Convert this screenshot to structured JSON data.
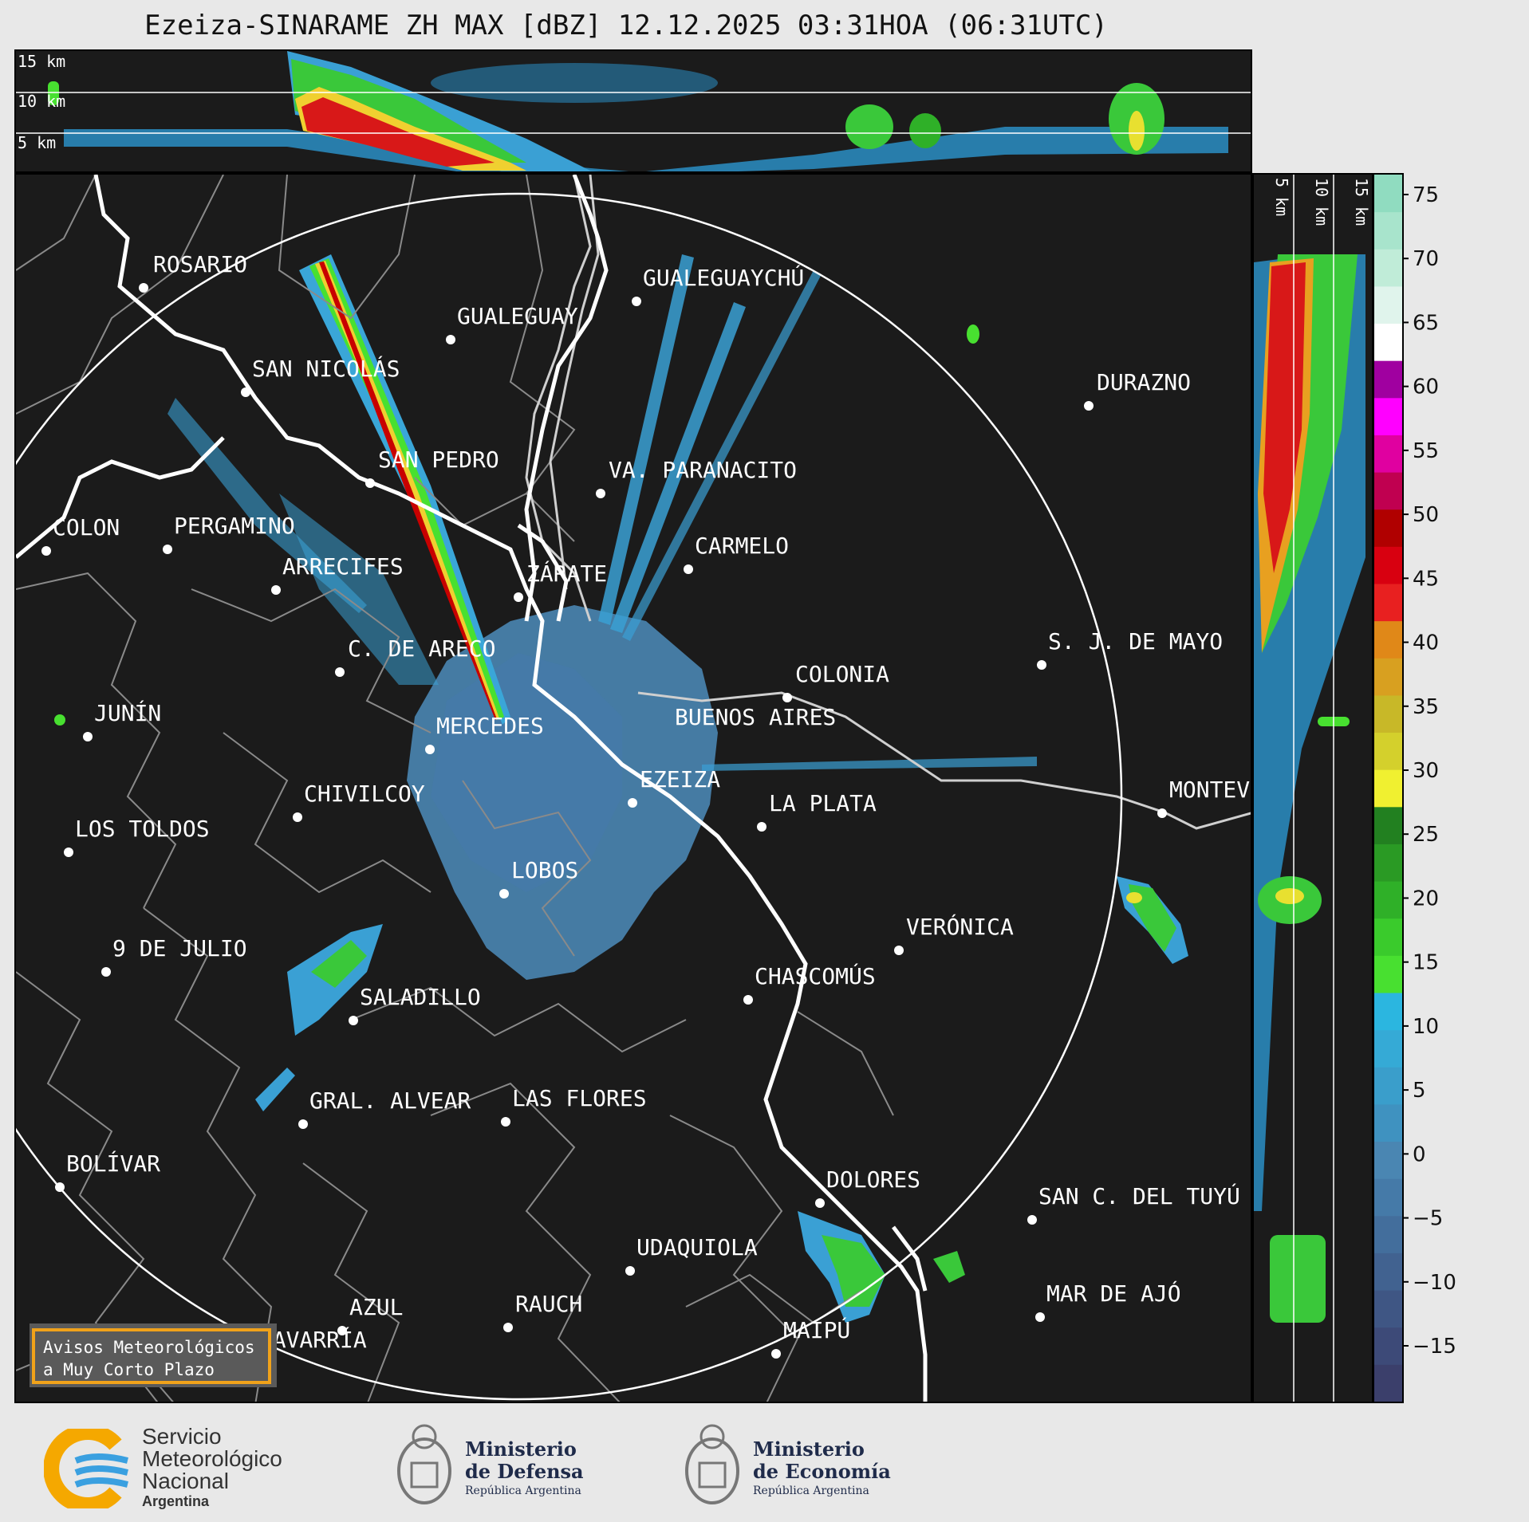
{
  "title": "Ezeiza-SINARAME ZH MAX [dBZ] 12.12.2025 03:31HOA (06:31UTC)",
  "top_axis": {
    "labels": [
      "15 km",
      "10 km",
      "5 km"
    ]
  },
  "side_axis": {
    "labels": [
      "5 km",
      "10 km",
      "15 km"
    ]
  },
  "colorbar": {
    "ticks": [
      "75",
      "70",
      "65",
      "60",
      "55",
      "50",
      "45",
      "40",
      "35",
      "30",
      "25",
      "20",
      "15",
      "10",
      "5",
      "0",
      "−5",
      "−10",
      "−15"
    ],
    "colors": [
      "#3b3f6b",
      "#3d4a78",
      "#3f5684",
      "#416290",
      "#436e9c",
      "#457aa8",
      "#4a86b2",
      "#3f92c0",
      "#3a9ecb",
      "#35aad6",
      "#2bb6e0",
      "#48e030",
      "#3acb2c",
      "#2fb028",
      "#2a9a24",
      "#228020",
      "#f0f030",
      "#d4d02c",
      "#c8b828",
      "#d8a020",
      "#e08818",
      "#e82020",
      "#d80010",
      "#b00000",
      "#c00050",
      "#e000a0",
      "#ff00ff",
      "#a000a0",
      "#ffffff",
      "#e0f4ec",
      "#c0ecd8",
      "#a8e4cc",
      "#90dcc0"
    ]
  },
  "cities": [
    {
      "name": "ROSARIO"
    },
    {
      "name": "GUALEGUAYCHÚ"
    },
    {
      "name": "GUALEGUAY"
    },
    {
      "name": "SAN NICOLÁS"
    },
    {
      "name": "DURAZNO"
    },
    {
      "name": "SAN PEDRO"
    },
    {
      "name": "VA. PARANACITO"
    },
    {
      "name": "COLON"
    },
    {
      "name": "PERGAMINO"
    },
    {
      "name": "CARMELO"
    },
    {
      "name": "ARRECIFES"
    },
    {
      "name": "ZÁRATE"
    },
    {
      "name": "S. J. DE MAYO"
    },
    {
      "name": "C. DE ARECO"
    },
    {
      "name": "COLONIA"
    },
    {
      "name": "JUNÍN"
    },
    {
      "name": "BUENOS AIRES"
    },
    {
      "name": "MERCEDES"
    },
    {
      "name": "EZEIZA"
    },
    {
      "name": "MONTEV"
    },
    {
      "name": "CHIVILCOY"
    },
    {
      "name": "LA PLATA"
    },
    {
      "name": "LOS TOLDOS"
    },
    {
      "name": "LOBOS"
    },
    {
      "name": "VERÓNICA"
    },
    {
      "name": "9 DE JULIO"
    },
    {
      "name": "CHASCOMÚS"
    },
    {
      "name": "SALADILLO"
    },
    {
      "name": "GRAL. ALVEAR"
    },
    {
      "name": "LAS FLORES"
    },
    {
      "name": "BOLÍVAR"
    },
    {
      "name": "DOLORES"
    },
    {
      "name": "SAN C. DEL TUYÚ"
    },
    {
      "name": "UDAQUIOLA"
    },
    {
      "name": "AZUL"
    },
    {
      "name": "RAUCH"
    },
    {
      "name": "MAR DE AJÓ"
    },
    {
      "name": "OLAVARRÍA"
    },
    {
      "name": "MAIPÚ"
    }
  ],
  "notice": {
    "line1": "Avisos Meteorológicos",
    "line2": "a Muy Corto Plazo"
  },
  "logos": {
    "smn": {
      "line1": "Servicio",
      "line2": "Meteorológico",
      "line3": "Nacional",
      "line4": "Argentina"
    },
    "defensa": {
      "line1": "Ministerio",
      "line2": "de Defensa",
      "line3": "República Argentina"
    },
    "economia": {
      "line1": "Ministerio",
      "line2": "de Economía",
      "line3": "República Argentina"
    }
  }
}
